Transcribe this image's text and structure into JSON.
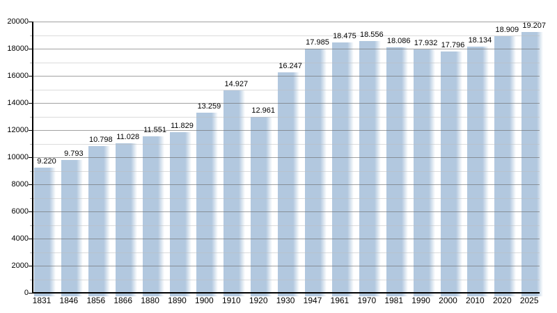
{
  "chart_data": {
    "type": "bar",
    "title": "",
    "xlabel": "",
    "ylabel": "",
    "categories": [
      "1831",
      "1846",
      "1856",
      "1866",
      "1880",
      "1890",
      "1900",
      "1910",
      "1920",
      "1930",
      "1947",
      "1961",
      "1970",
      "1981",
      "1990",
      "2000",
      "2010",
      "2020",
      "2025"
    ],
    "values": [
      9220,
      9793,
      10798,
      11028,
      11551,
      11829,
      13259,
      14927,
      12961,
      16247,
      17985,
      18475,
      18556,
      18086,
      17932,
      17796,
      18134,
      18909,
      19207
    ],
    "bar_labels": [
      "9.220",
      "9.793",
      "10.798",
      "11.028",
      "11.551",
      "11.829",
      "13.259",
      "14.927",
      "12.961",
      "16.247",
      "17.985",
      "18.475",
      "18.556",
      "18.086",
      "17.932",
      "17.796",
      "18.134",
      "18.909",
      "19.207"
    ],
    "ylim": [
      0,
      20000
    ],
    "y_major_step": 2000,
    "y_minor_step": 1000,
    "y_tick_labels": [
      "0",
      "2000",
      "4000",
      "6000",
      "8000",
      "10000",
      "12000",
      "14000",
      "16000",
      "18000",
      "20000"
    ],
    "grid": true,
    "legend": null,
    "colors": {
      "bar": "#b2c8df",
      "bar_fade_to": "rgba(255,255,255,0)",
      "axis": "#000000",
      "major_grid": "#6e6e6e",
      "minor_grid": "#bebebe",
      "text": "#000000",
      "background": "#ffffff"
    }
  }
}
